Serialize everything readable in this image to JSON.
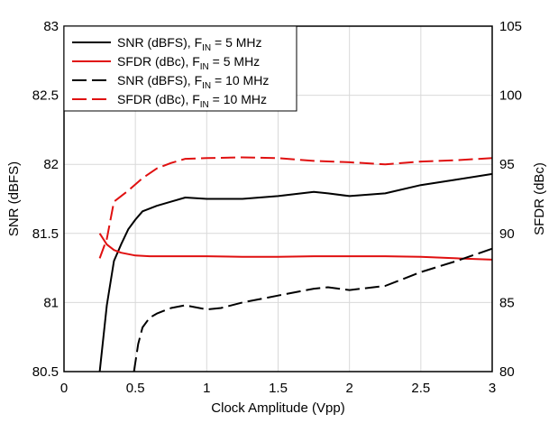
{
  "chart_data": {
    "type": "line",
    "title": "",
    "xlabel": "Clock Amplitude (Vpp)",
    "ylabel_left": "SNR (dBFS)",
    "ylabel_right": "SFDR (dBc)",
    "xlim": [
      0,
      3
    ],
    "ylim_left": [
      80.5,
      83
    ],
    "ylim_right": [
      80,
      105
    ],
    "x_ticks": [
      "0",
      "0.5",
      "1",
      "1.5",
      "2",
      "2.5",
      "3"
    ],
    "y_left_ticks": [
      "80.5",
      "81",
      "81.5",
      "82",
      "82.5",
      "83"
    ],
    "y_right_ticks": [
      "80",
      "85",
      "90",
      "95",
      "100",
      "105"
    ],
    "grid": true,
    "legend_position": "top-left",
    "legend": [
      {
        "main": "SNR (dBFS), F",
        "sub": "IN",
        "tail": " = 5 MHz"
      },
      {
        "main": "SFDR (dBc), F",
        "sub": "IN",
        "tail": " = 5 MHz"
      },
      {
        "main": "SNR (dBFS), F",
        "sub": "IN",
        "tail": " = 10 MHz"
      },
      {
        "main": "SFDR (dBc), F",
        "sub": "IN",
        "tail": " = 10 MHz"
      }
    ],
    "series": [
      {
        "name": "SNR (dBFS), FIN = 5 MHz",
        "axis": "left",
        "color": "#000000",
        "dash": "solid",
        "x": [
          0.25,
          0.3,
          0.35,
          0.4,
          0.45,
          0.5,
          0.55,
          0.65,
          0.75,
          0.85,
          1.0,
          1.25,
          1.5,
          1.75,
          1.85,
          2.0,
          2.25,
          2.5,
          2.75,
          3.0
        ],
        "y": [
          80.5,
          80.98,
          81.3,
          81.42,
          81.53,
          81.6,
          81.66,
          81.7,
          81.73,
          81.76,
          81.75,
          81.75,
          81.77,
          81.8,
          81.79,
          81.77,
          81.79,
          81.85,
          81.89,
          81.93
        ]
      },
      {
        "name": "SFDR (dBc), FIN = 5 MHz",
        "axis": "right",
        "color": "#e01010",
        "dash": "solid",
        "x": [
          0.25,
          0.3,
          0.35,
          0.4,
          0.5,
          0.6,
          0.75,
          1.0,
          1.25,
          1.5,
          1.75,
          2.0,
          2.25,
          2.5,
          2.75,
          3.0
        ],
        "y": [
          90.0,
          89.2,
          88.8,
          88.6,
          88.4,
          88.35,
          88.35,
          88.35,
          88.3,
          88.3,
          88.35,
          88.35,
          88.35,
          88.3,
          88.2,
          88.1
        ]
      },
      {
        "name": "SNR (dBFS), FIN = 10 MHz",
        "axis": "left",
        "color": "#000000",
        "dash": "dashed",
        "x": [
          0.49,
          0.52,
          0.55,
          0.6,
          0.65,
          0.7,
          0.75,
          0.85,
          1.0,
          1.1,
          1.25,
          1.5,
          1.75,
          1.85,
          2.0,
          2.25,
          2.5,
          2.75,
          3.0
        ],
        "y": [
          80.5,
          80.7,
          80.82,
          80.89,
          80.92,
          80.94,
          80.96,
          80.98,
          80.95,
          80.96,
          81.0,
          81.05,
          81.1,
          81.11,
          81.09,
          81.12,
          81.22,
          81.3,
          81.39
        ]
      },
      {
        "name": "SFDR (dBc), FIN = 10 MHz",
        "axis": "right",
        "color": "#e01010",
        "dash": "dashed",
        "x": [
          0.25,
          0.3,
          0.35,
          0.45,
          0.55,
          0.65,
          0.75,
          0.85,
          1.0,
          1.25,
          1.5,
          1.75,
          2.0,
          2.25,
          2.5,
          2.75,
          3.0
        ],
        "y": [
          88.2,
          89.6,
          92.3,
          93.1,
          94.0,
          94.7,
          95.1,
          95.4,
          95.45,
          95.5,
          95.45,
          95.25,
          95.15,
          95.0,
          95.2,
          95.3,
          95.45
        ]
      }
    ]
  }
}
